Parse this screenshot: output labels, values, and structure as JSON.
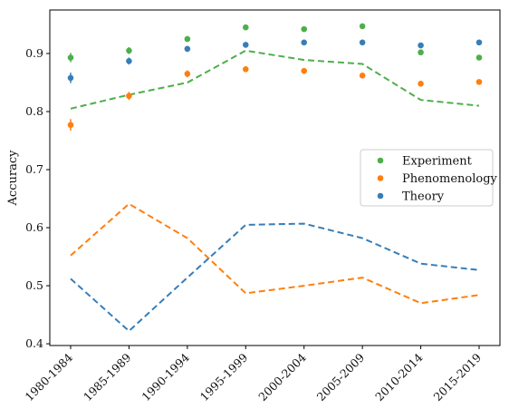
{
  "chart_data": {
    "type": "scatter",
    "title": "",
    "xlabel": "",
    "ylabel": "Accuracy",
    "categories": [
      "1980-1984",
      "1985-1989",
      "1990-1994",
      "1995-1999",
      "2000-2004",
      "2005-2009",
      "2010-2014",
      "2015-2019"
    ],
    "ylim": [
      0.397,
      0.975
    ],
    "yticks": [
      0.4,
      0.5,
      0.6,
      0.7,
      0.8,
      0.9
    ],
    "ytick_labels": [
      "0.4",
      "0.5",
      "0.6",
      "0.7",
      "0.8",
      "0.9"
    ],
    "grid": false,
    "legend_position": "center-right",
    "series": [
      {
        "name": "Experiment",
        "color": "#4daf4a",
        "points": [
          0.893,
          0.905,
          0.925,
          0.945,
          0.942,
          0.947,
          0.902,
          0.893
        ],
        "errors": [
          0.008,
          0.006,
          0.005,
          0.003,
          0.003,
          0.003,
          0.003,
          0.003
        ],
        "trend": [
          0.805,
          0.829,
          0.85,
          0.905,
          0.889,
          0.882,
          0.82,
          0.81
        ]
      },
      {
        "name": "Phenomenology",
        "color": "#ff7f0e",
        "points": [
          0.777,
          0.827,
          0.865,
          0.873,
          0.87,
          0.862,
          0.848,
          0.851
        ],
        "errors": [
          0.01,
          0.007,
          0.006,
          0.003,
          0.003,
          0.003,
          0.003,
          0.003
        ],
        "trend": [
          0.552,
          0.641,
          0.582,
          0.487,
          0.5,
          0.514,
          0.47,
          0.484
        ]
      },
      {
        "name": "Theory",
        "color": "#377eb8",
        "points": [
          0.858,
          0.887,
          0.908,
          0.915,
          0.919,
          0.919,
          0.914,
          0.919
        ],
        "errors": [
          0.009,
          0.006,
          0.005,
          0.003,
          0.003,
          0.003,
          0.003,
          0.003
        ],
        "trend": [
          0.512,
          0.422,
          0.514,
          0.605,
          0.607,
          0.582,
          0.538,
          0.527
        ]
      }
    ]
  }
}
